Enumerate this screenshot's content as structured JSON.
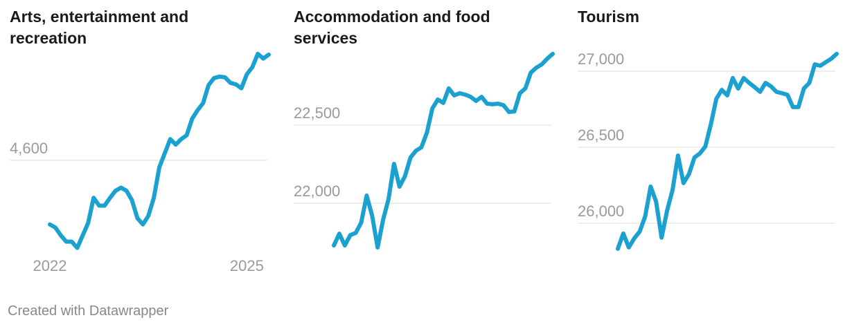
{
  "chart_data": [
    {
      "type": "line",
      "title": "Arts, entertainment and recreation",
      "color": "#1ba1d0",
      "categories": [
        "2022",
        null,
        null,
        null,
        null,
        null,
        null,
        null,
        null,
        null,
        null,
        null,
        null,
        null,
        null,
        null,
        null,
        null,
        null,
        null,
        null,
        null,
        null,
        null,
        null,
        null,
        null,
        null,
        null,
        null,
        null,
        null,
        null,
        null,
        null,
        null,
        "2025",
        null,
        null,
        null,
        null
      ],
      "values": [
        4518,
        4514,
        4504,
        4496,
        4496,
        4488,
        4504,
        4520,
        4552,
        4542,
        4542,
        4552,
        4561,
        4565,
        4561,
        4549,
        4526,
        4518,
        4529,
        4552,
        4591,
        4609,
        4627,
        4620,
        4627,
        4632,
        4653,
        4664,
        4673,
        4696,
        4705,
        4707,
        4706,
        4699,
        4697,
        4692,
        4710,
        4719,
        4736,
        4730,
        4735
      ],
      "ylim": [
        4478,
        4743
      ],
      "yticks": [
        {
          "value": 4600,
          "label": "4,600"
        }
      ],
      "grid": true
    },
    {
      "type": "line",
      "title": "Accommodation and food services",
      "color": "#1ba1d0",
      "values": [
        21730,
        21805,
        21730,
        21796,
        21810,
        21876,
        22049,
        21920,
        21717,
        21894,
        22027,
        22252,
        22106,
        22173,
        22292,
        22336,
        22358,
        22451,
        22606,
        22664,
        22642,
        22735,
        22690,
        22704,
        22695,
        22681,
        22655,
        22681,
        22637,
        22633,
        22637,
        22628,
        22584,
        22588,
        22704,
        22735,
        22836,
        22867,
        22889,
        22925,
        22956
      ],
      "ylim": [
        21664,
        22991
      ],
      "yticks": [
        {
          "value": 22000,
          "label": "22,000"
        },
        {
          "value": 22500,
          "label": "22,500"
        }
      ],
      "grid": true
    },
    {
      "type": "line",
      "title": "Tourism",
      "color": "#1ba1d0",
      "values": [
        25832,
        25932,
        25841,
        25900,
        25945,
        26045,
        26241,
        26141,
        25905,
        26082,
        26218,
        26445,
        26264,
        26323,
        26432,
        26459,
        26505,
        26650,
        26818,
        26877,
        26841,
        26955,
        26886,
        26955,
        26923,
        26895,
        26864,
        26923,
        26900,
        26864,
        26855,
        26845,
        26764,
        26764,
        26886,
        26923,
        27045,
        27036,
        27059,
        27082,
        27114
      ],
      "ylim": [
        25786,
        27150
      ],
      "yticks": [
        {
          "value": 26000,
          "label": "26,000"
        },
        {
          "value": 26500,
          "label": "26,500"
        },
        {
          "value": 27000,
          "label": "27,000"
        }
      ],
      "grid": true
    }
  ],
  "footer": "Created with Datawrapper"
}
